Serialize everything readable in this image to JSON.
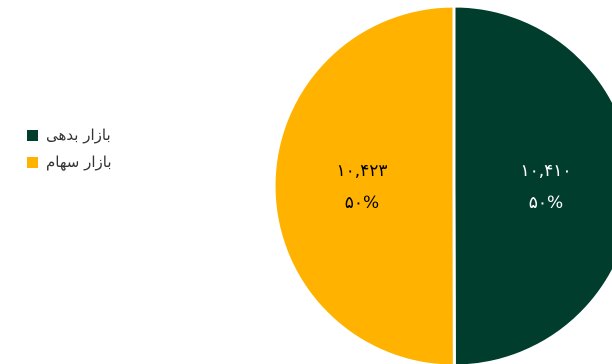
{
  "chart_data": {
    "type": "pie",
    "title": "",
    "legend_position": "left",
    "slices": [
      {
        "name": "بازار بدهی",
        "value": 10410,
        "value_label": "۱۰,۴۱۰",
        "percent_label": "۵۰%",
        "color": "#003D2D"
      },
      {
        "name": "بازار سهام",
        "value": 10423,
        "value_label": "۱۰,۴۲۳",
        "percent_label": "۵۰%",
        "color": "#FFB300"
      }
    ]
  }
}
